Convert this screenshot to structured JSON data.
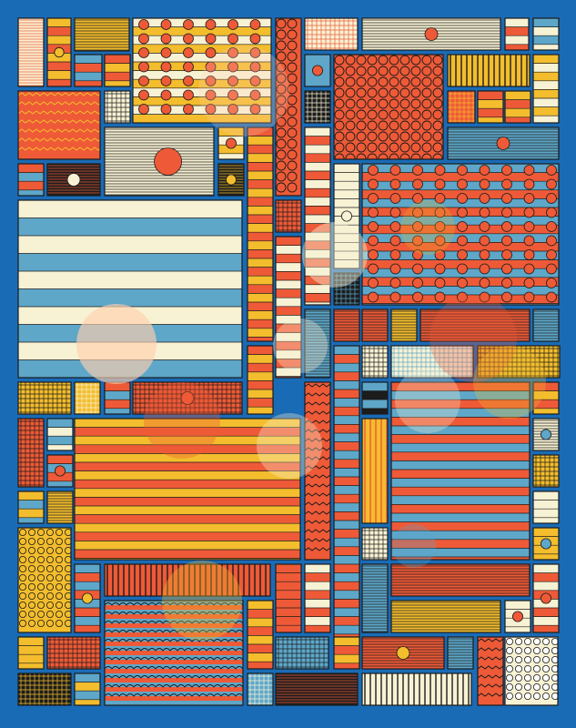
{
  "artwork": {
    "palette": {
      "background": "#1a6bb5",
      "cream": "#f8f2d4",
      "orange": "#ee5a37",
      "yellow": "#f3bd2d",
      "light_blue": "#5ea7c9",
      "ink": "#1c1c1c",
      "peach_glow": "#ffcfae"
    }
  }
}
